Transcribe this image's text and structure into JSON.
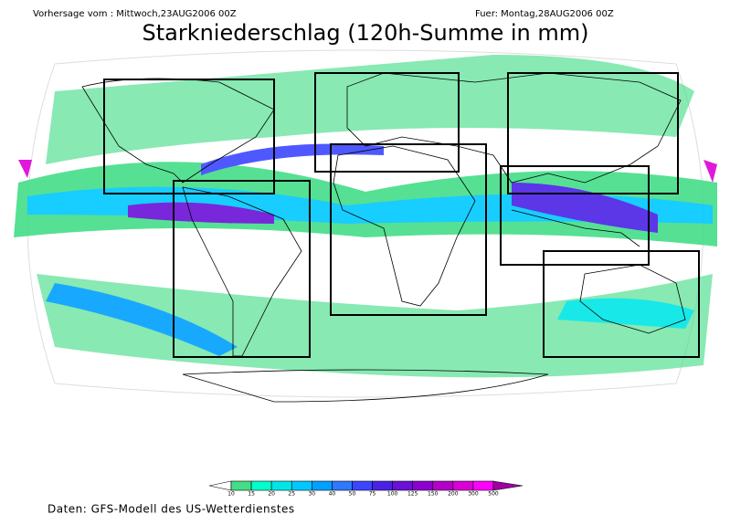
{
  "header": {
    "left": "Vorhersage vom : Mittwoch,23AUG2006 00Z",
    "right": "Fuer: Montag,28AUG2006 00Z",
    "title": "Starkniederschlag (120h-Summe in mm)"
  },
  "legend": {
    "labels": [
      "10",
      "15",
      "20",
      "25",
      "30",
      "40",
      "50",
      "75",
      "100",
      "125",
      "150",
      "200",
      "300",
      "500"
    ],
    "colors": [
      "#ffffff",
      "#44dd88",
      "#00ffcc",
      "#00e6e6",
      "#00c8ff",
      "#00a0ff",
      "#2f78ff",
      "#3c46ff",
      "#4a22e6",
      "#6a10d8",
      "#8c00d0",
      "#b400c8",
      "#dc00d8",
      "#ff00ff",
      "#a000a0"
    ]
  },
  "footer": "Daten: GFS-Modell des US-Wetterdienstes"
}
